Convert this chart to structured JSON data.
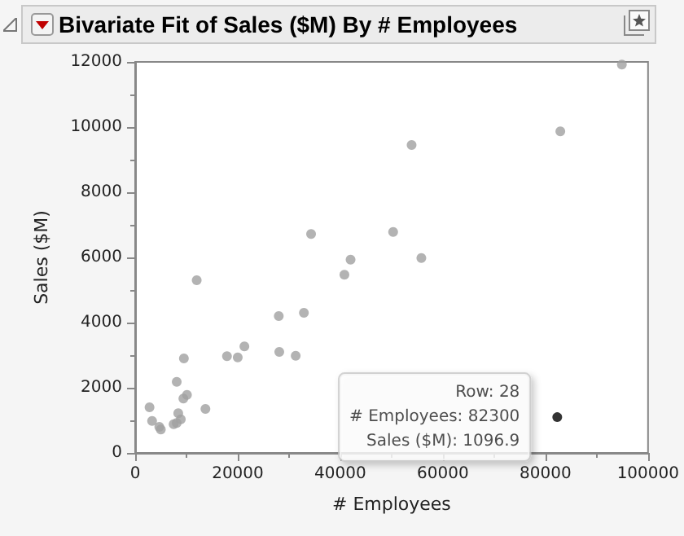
{
  "chart_data": {
    "type": "scatter",
    "title": "Bivariate Fit of Sales ($M) By # Employees",
    "xlabel": "# Employees",
    "ylabel": "Sales ($M)",
    "series": [
      {
        "color": "#a0a0a0",
        "x": [
          2800,
          3300,
          4700,
          5000,
          7500,
          8100,
          8900,
          8400,
          8100,
          9400,
          10100,
          9500,
          12000,
          13700,
          17900,
          20000,
          21300,
          28000,
          28100,
          31300,
          32900,
          34300,
          40800,
          42000,
          50300,
          53900,
          55800,
          82900,
          94900
        ],
        "values": [
          1400,
          980,
          800,
          720,
          880,
          920,
          1030,
          1220,
          2180,
          1670,
          1780,
          2900,
          5300,
          1350,
          2970,
          2930,
          3270,
          4200,
          3100,
          2980,
          4300,
          6720,
          5470,
          5930,
          6780,
          9450,
          5980,
          9870,
          11920
        ]
      },
      {
        "color": "#000000",
        "x": [
          82300
        ],
        "values": [
          1096.9
        ]
      }
    ],
    "annotations": [
      {
        "text": "Row: 28\n# Employees: 82300\nSales ($M): 1096.9",
        "x": 82300,
        "y": 1096.9
      }
    ],
    "xlim": [
      0,
      100000
    ],
    "xticks": [
      0,
      20000,
      40000,
      60000,
      80000,
      100000
    ],
    "ylim": [
      0,
      12000
    ],
    "yticks": [
      0,
      2000,
      4000,
      6000,
      8000,
      10000,
      12000
    ],
    "grid": false,
    "marker": "circle"
  }
}
